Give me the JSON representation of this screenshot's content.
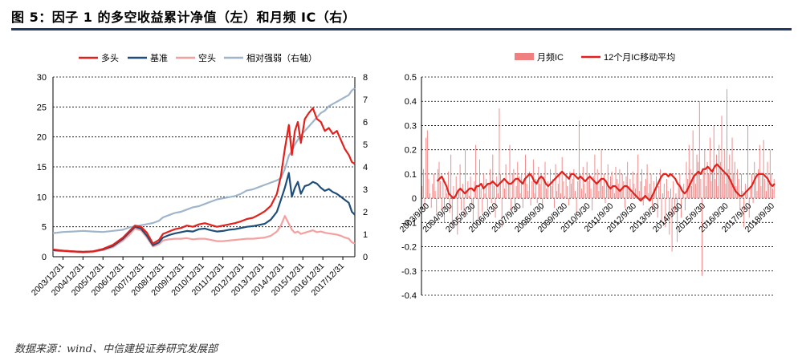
{
  "figure": {
    "title": "图 5：因子 1 的多空收益累计净值（左）和月频 IC（右）",
    "source": "数据来源：wind、中信建投证券研究发展部"
  },
  "colors": {
    "long_short": "#e3201b",
    "benchmark": "#1f4e79",
    "short": "#f4a0a0",
    "relative": "#9fb5cc",
    "ic_bar": "#f08080",
    "ic_ma": "#e3201b",
    "title_rule": "#1f3864"
  },
  "chart_data": [
    {
      "type": "line",
      "legend": [
        "多头",
        "基准",
        "空头",
        "相对强弱（右轴）"
      ],
      "x_tick_labels": [
        "2003/12/31",
        "2004/12/31",
        "2005/12/31",
        "2006/12/31",
        "2007/12/31",
        "2008/12/31",
        "2009/12/31",
        "2010/12/31",
        "2011/12/31",
        "2012/12/31",
        "2013/12/31",
        "2014/12/31",
        "2015/12/31",
        "2016/12/31",
        "2017/12/31"
      ],
      "y_ticks_left": [
        "0",
        "5",
        "10",
        "15",
        "20",
        "25",
        "30"
      ],
      "y_ticks_right": [
        "0",
        "1",
        "2",
        "3",
        "4",
        "5",
        "6",
        "7",
        "8"
      ],
      "ylim_left": [
        0,
        30
      ],
      "ylim_right": [
        0,
        8
      ],
      "xlim": [
        2003.5,
        2018.6
      ],
      "legend_position": "top",
      "grid": "horizontal dashed",
      "series": [
        {
          "name": "多头",
          "axis": "left",
          "x": [
            2003.5,
            2004.0,
            2004.5,
            2005.0,
            2005.5,
            2006.0,
            2006.5,
            2007.0,
            2007.3,
            2007.6,
            2007.9,
            2008.2,
            2008.5,
            2008.8,
            2009.0,
            2009.3,
            2009.6,
            2009.9,
            2010.2,
            2010.5,
            2010.8,
            2011.1,
            2011.4,
            2011.7,
            2012.0,
            2012.3,
            2012.6,
            2012.9,
            2013.2,
            2013.5,
            2013.8,
            2014.1,
            2014.4,
            2014.7,
            2014.9,
            2015.1,
            2015.3,
            2015.45,
            2015.6,
            2015.75,
            2015.9,
            2016.1,
            2016.3,
            2016.5,
            2016.7,
            2016.9,
            2017.1,
            2017.3,
            2017.5,
            2017.7,
            2017.9,
            2018.1,
            2018.3,
            2018.45,
            2018.6
          ],
          "y": [
            1.2,
            1.0,
            0.9,
            0.8,
            0.9,
            1.3,
            2.0,
            3.2,
            4.2,
            5.2,
            5.0,
            4.0,
            2.2,
            2.8,
            3.8,
            4.2,
            4.6,
            4.8,
            5.2,
            5.0,
            5.4,
            5.6,
            5.3,
            5.0,
            5.2,
            5.4,
            5.6,
            5.9,
            6.3,
            6.5,
            7.0,
            7.6,
            8.5,
            10.5,
            13.5,
            18.0,
            22.0,
            17.0,
            21.0,
            22.5,
            19.0,
            23.0,
            24.0,
            24.8,
            23.0,
            22.5,
            21.0,
            21.5,
            20.5,
            21.0,
            19.5,
            18.0,
            17.0,
            15.8,
            15.5
          ]
        },
        {
          "name": "基准",
          "axis": "left",
          "x": [
            2003.5,
            2004.0,
            2004.5,
            2005.0,
            2005.5,
            2006.0,
            2006.5,
            2007.0,
            2007.3,
            2007.6,
            2007.9,
            2008.2,
            2008.5,
            2008.8,
            2009.0,
            2009.3,
            2009.6,
            2009.9,
            2010.2,
            2010.5,
            2010.8,
            2011.1,
            2011.4,
            2011.7,
            2012.0,
            2012.3,
            2012.6,
            2012.9,
            2013.2,
            2013.5,
            2013.8,
            2014.1,
            2014.4,
            2014.7,
            2014.9,
            2015.1,
            2015.3,
            2015.45,
            2015.6,
            2015.75,
            2015.9,
            2016.1,
            2016.3,
            2016.5,
            2016.7,
            2016.9,
            2017.1,
            2017.3,
            2017.5,
            2017.7,
            2017.9,
            2018.1,
            2018.3,
            2018.45,
            2018.6
          ],
          "y": [
            1.1,
            1.0,
            0.9,
            0.8,
            0.9,
            1.2,
            1.8,
            3.0,
            4.0,
            5.0,
            4.7,
            3.5,
            1.9,
            2.4,
            3.2,
            3.6,
            3.9,
            4.1,
            4.3,
            4.2,
            4.6,
            4.7,
            4.4,
            4.2,
            4.3,
            4.5,
            4.6,
            4.8,
            5.0,
            5.1,
            5.3,
            5.5,
            6.2,
            7.5,
            9.5,
            11.5,
            14.0,
            10.0,
            11.5,
            12.5,
            10.5,
            11.8,
            12.0,
            12.5,
            12.2,
            11.5,
            11.0,
            11.3,
            10.8,
            10.5,
            10.0,
            9.5,
            9.0,
            7.5,
            7.0
          ]
        },
        {
          "name": "空头",
          "axis": "left",
          "x": [
            2003.5,
            2004.0,
            2004.5,
            2005.0,
            2005.5,
            2006.0,
            2006.5,
            2007.0,
            2007.3,
            2007.6,
            2007.9,
            2008.2,
            2008.5,
            2008.8,
            2009.0,
            2009.3,
            2009.6,
            2009.9,
            2010.2,
            2010.5,
            2010.8,
            2011.1,
            2011.4,
            2011.7,
            2012.0,
            2012.3,
            2012.6,
            2012.9,
            2013.2,
            2013.5,
            2013.8,
            2014.1,
            2014.4,
            2014.7,
            2014.9,
            2015.1,
            2015.3,
            2015.45,
            2015.6,
            2015.75,
            2015.9,
            2016.1,
            2016.3,
            2016.5,
            2016.7,
            2016.9,
            2017.1,
            2017.3,
            2017.5,
            2017.7,
            2017.9,
            2018.1,
            2018.3,
            2018.45,
            2018.6
          ],
          "y": [
            1.0,
            0.9,
            0.8,
            0.7,
            0.8,
            1.1,
            1.6,
            2.7,
            3.6,
            4.7,
            4.4,
            3.2,
            1.7,
            2.1,
            2.7,
            2.9,
            3.0,
            3.0,
            3.1,
            2.9,
            3.0,
            3.0,
            2.8,
            2.6,
            2.6,
            2.7,
            2.8,
            2.9,
            3.0,
            3.0,
            3.1,
            3.2,
            3.5,
            4.2,
            5.2,
            6.8,
            5.5,
            4.5,
            4.0,
            4.2,
            3.8,
            4.0,
            4.2,
            4.4,
            4.1,
            4.2,
            4.0,
            3.9,
            3.8,
            3.7,
            3.5,
            3.2,
            3.0,
            2.4,
            2.2
          ]
        },
        {
          "name": "相对强弱（右轴）",
          "axis": "right",
          "x": [
            2003.5,
            2004.0,
            2004.5,
            2005.0,
            2005.5,
            2006.0,
            2006.5,
            2007.0,
            2007.3,
            2007.6,
            2007.9,
            2008.2,
            2008.5,
            2008.8,
            2009.0,
            2009.3,
            2009.6,
            2009.9,
            2010.2,
            2010.5,
            2010.8,
            2011.1,
            2011.4,
            2011.7,
            2012.0,
            2012.3,
            2012.6,
            2012.9,
            2013.2,
            2013.5,
            2013.8,
            2014.1,
            2014.4,
            2014.7,
            2014.9,
            2015.1,
            2015.3,
            2015.45,
            2015.6,
            2015.75,
            2015.9,
            2016.1,
            2016.3,
            2016.5,
            2016.7,
            2016.9,
            2017.1,
            2017.3,
            2017.5,
            2017.7,
            2017.9,
            2018.1,
            2018.3,
            2018.45,
            2018.6
          ],
          "y": [
            1.05,
            1.1,
            1.12,
            1.15,
            1.12,
            1.1,
            1.15,
            1.2,
            1.3,
            1.35,
            1.4,
            1.45,
            1.5,
            1.6,
            1.75,
            1.85,
            1.95,
            2.0,
            2.1,
            2.2,
            2.25,
            2.35,
            2.45,
            2.55,
            2.6,
            2.65,
            2.7,
            2.8,
            2.95,
            3.0,
            3.1,
            3.2,
            3.3,
            3.4,
            3.5,
            3.9,
            4.5,
            4.7,
            5.0,
            5.2,
            5.4,
            5.6,
            5.8,
            6.0,
            6.2,
            6.4,
            6.5,
            6.7,
            6.8,
            6.9,
            7.0,
            7.1,
            7.2,
            7.4,
            7.5
          ]
        }
      ]
    },
    {
      "type": "bar",
      "legend": [
        "月频IC",
        "12个月IC移动平均"
      ],
      "x_tick_labels": [
        "2003/9/30",
        "2004/9/30",
        "2005/9/30",
        "2006/9/30",
        "2007/9/30",
        "2008/9/30",
        "2009/9/30",
        "2010/9/30",
        "2011/9/30",
        "2012/9/30",
        "2013/9/30",
        "2014/9/30",
        "2015/9/30",
        "2016/9/30",
        "2017/9/30",
        "2018/9/30"
      ],
      "y_ticks": [
        "0.5",
        "0.4",
        "0.3",
        "0.2",
        "0.1",
        "0",
        "-0.1",
        "-0.2",
        "-0.3",
        "-0.4"
      ],
      "ylim": [
        -0.4,
        0.5
      ],
      "legend_position": "top",
      "grid": "horizontal dashed",
      "ic_monthly": [
        0.05,
        0.12,
        -0.05,
        0.25,
        0.28,
        0.08,
        0.02,
        -0.04,
        0.06,
        0.1,
        0.03,
        -0.06,
        0.12,
        0.15,
        0.07,
        -0.05,
        0.08,
        -0.1,
        0.04,
        0.02,
        0.11,
        -0.06,
        0.18,
        -0.12,
        0.05,
        0.0,
        0.09,
        -0.15,
        0.03,
        0.14,
        -0.05,
        0.06,
        -0.08,
        0.2,
        0.03,
        0.07,
        0.01,
        0.09,
        -0.03,
        -0.1,
        0.07,
        0.22,
        0.05,
        -0.09,
        0.16,
        0.04,
        -0.06,
        0.1,
        0.02,
        0.08,
        -0.04,
        0.06,
        0.12,
        -0.02,
        0.18,
        0.05,
        -0.08,
        0.09,
        0.02,
        0.37,
        0.1,
        -0.12,
        0.08,
        0.04,
        0.14,
        0.0,
        0.06,
        0.22,
        -0.05,
        0.1,
        0.12,
        -0.06,
        0.05,
        0.15,
        0.09,
        0.02,
        0.1,
        -0.04,
        0.08,
        0.18,
        0.06,
        0.03,
        0.11,
        -0.03,
        0.07,
        0.16,
        0.02,
        0.08,
        -0.02,
        0.13,
        0.06,
        0.1,
        -0.05,
        0.09,
        0.15,
        0.04,
        0.07,
        0.0,
        0.12,
        0.05,
        0.08,
        -0.04,
        0.14,
        0.03,
        0.06,
        0.1,
        0.02,
        0.17,
        0.07,
        0.01,
        0.09,
        0.05,
        -0.03,
        0.11,
        0.06,
        0.08,
        0.12,
        0.03,
        -0.06,
        0.07,
        0.32,
        0.1,
        0.04,
        0.13,
        0.06,
        0.02,
        0.15,
        0.07,
        0.1,
        0.04,
        -0.05,
        0.09,
        0.18,
        0.06,
        0.12,
        0.03,
        0.08,
        0.2,
        0.05,
        0.1,
        -0.02,
        0.07,
        0.14,
        0.04,
        0.09,
        0.11,
        0.05,
        0.02,
        0.13,
        0.08,
        0.06,
        0.12,
        0.03,
        0.1,
        0.07,
        -0.04,
        0.09,
        0.15,
        0.05,
        0.08,
        0.02,
        0.11,
        0.06,
        0.04,
        0.1,
        0.18,
        0.03,
        0.07,
        0.12,
        -0.03,
        0.05,
        0.08,
        0.14,
        0.02,
        0.06,
        0.1,
        -0.05,
        0.07,
        0.03,
        0.09,
        -0.08,
        0.05,
        0.12,
        -0.1,
        0.02,
        0.06,
        -0.12,
        0.08,
        0.03,
        -0.15,
        0.04,
        -0.22,
        0.07,
        -0.06,
        0.02,
        -0.18,
        0.05,
        0.1,
        -0.08,
        0.03,
        0.06,
        -0.05,
        0.15,
        0.08,
        0.22,
        0.12,
        0.05,
        0.28,
        0.1,
        0.06,
        0.18,
        0.15,
        0.4,
        0.08,
        -0.32,
        0.12,
        0.2,
        0.05,
        0.15,
        0.1,
        0.25,
        0.07,
        0.12,
        0.3,
        0.08,
        0.18,
        0.05,
        0.22,
        0.15,
        0.34,
        0.1,
        0.2,
        0.06,
        0.45,
        0.12,
        0.18,
        0.08,
        0.25,
        0.1,
        0.15,
        0.05,
        0.12,
        0.08,
        -0.05,
        0.1,
        0.03,
        -0.12,
        0.06,
        0.02,
        0.3,
        -0.08,
        0.05,
        0.1,
        -0.02,
        0.15,
        0.07,
        0.03,
        0.12,
        0.22,
        0.05,
        0.1,
        0.24,
        0.08,
        0.03,
        0.15,
        0.06,
        0.2,
        0.1,
        0.04,
        0.08
      ],
      "ic_ma_12m": [
        0.07,
        0.08,
        0.09,
        0.07,
        0.05,
        0.02,
        0.01,
        0.0,
        0.01,
        0.03,
        0.04,
        0.03,
        0.02,
        0.03,
        0.04,
        0.04,
        0.03,
        0.05,
        0.05,
        0.06,
        0.04,
        0.05,
        0.06,
        0.06,
        0.07,
        0.06,
        0.05,
        0.06,
        0.07,
        0.08,
        0.07,
        0.06,
        0.06,
        0.07,
        0.08,
        0.08,
        0.07,
        0.06,
        0.08,
        0.09,
        0.1,
        0.09,
        0.07,
        0.06,
        0.08,
        0.09,
        0.08,
        0.06,
        0.05,
        0.06,
        0.07,
        0.08,
        0.09,
        0.1,
        0.11,
        0.1,
        0.09,
        0.08,
        0.1,
        0.1,
        0.09,
        0.08,
        0.09,
        0.08,
        0.07,
        0.08,
        0.09,
        0.08,
        0.07,
        0.06,
        0.07,
        0.08,
        0.08,
        0.07,
        0.05,
        0.04,
        0.05,
        0.05,
        0.04,
        0.03,
        0.04,
        0.05,
        0.05,
        0.04,
        0.03,
        0.02,
        0.01,
        0.0,
        -0.01,
        0.0,
        0.01,
        0.0,
        -0.01,
        0.01,
        0.03,
        0.05,
        0.07,
        0.09,
        0.1,
        0.1,
        0.09,
        0.1,
        0.09,
        0.08,
        0.06,
        0.05,
        0.03,
        0.02,
        0.03,
        0.05,
        0.07,
        0.09,
        0.1,
        0.11,
        0.1,
        0.12,
        0.12,
        0.13,
        0.12,
        0.11,
        0.13,
        0.14,
        0.13,
        0.12,
        0.11,
        0.1,
        0.09,
        0.07,
        0.05,
        0.03,
        0.02,
        0.01,
        0.01,
        0.02,
        0.03,
        0.04,
        0.05,
        0.07,
        0.09,
        0.1,
        0.1,
        0.1,
        0.09,
        0.08,
        0.06,
        0.05,
        0.06
      ]
    }
  ]
}
